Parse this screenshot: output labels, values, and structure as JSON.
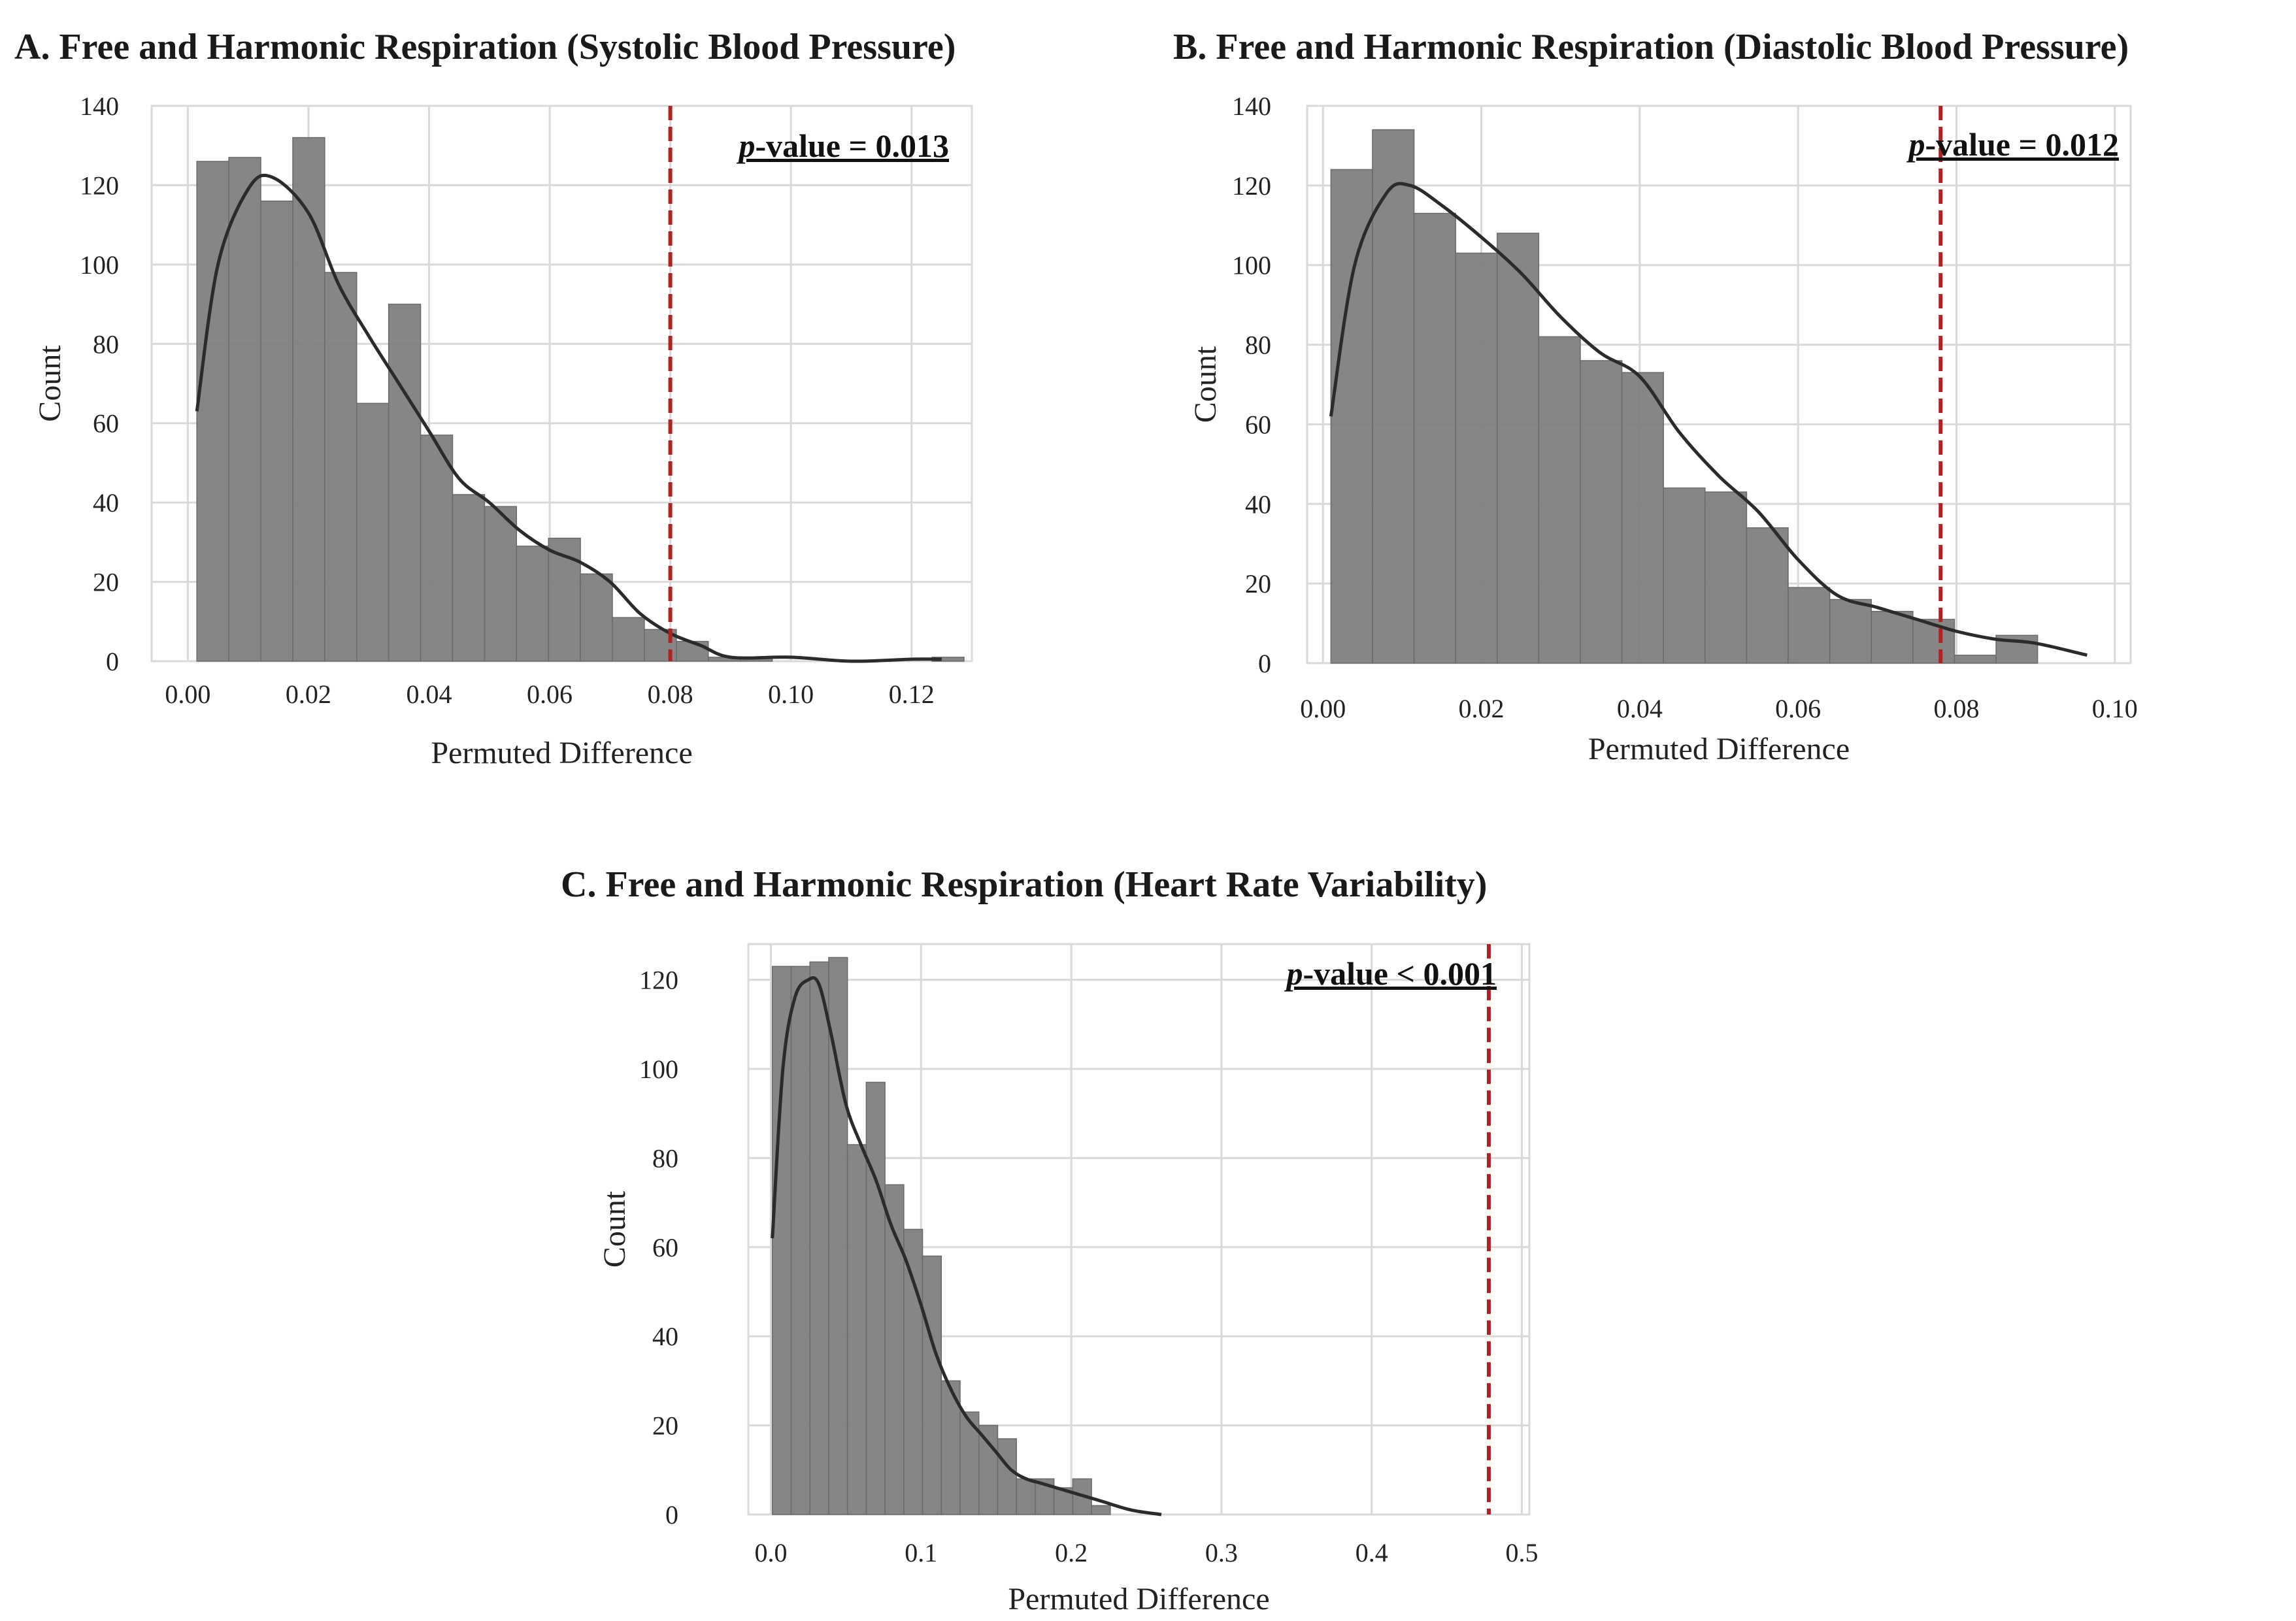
{
  "colors": {
    "bar": "#7f7f7f",
    "bar_edge": "#6a6a6a",
    "kde": "#2b2b2b",
    "grid": "#d9d9d9",
    "threshold": "#b22222"
  },
  "chart_data": [
    {
      "id": "A",
      "type": "bar",
      "title": "A. Free and Harmonic Respiration (Systolic Blood Pressure)",
      "xlabel": "Permuted Difference",
      "ylabel": "Count",
      "xlim": [
        -0.006,
        0.13
      ],
      "ylim": [
        0,
        140
      ],
      "xticks": [
        0.0,
        0.02,
        0.04,
        0.06,
        0.08,
        0.1,
        0.12
      ],
      "xtick_labels": [
        "0.00",
        "0.02",
        "0.04",
        "0.06",
        "0.08",
        "0.10",
        "0.12"
      ],
      "yticks": [
        0,
        20,
        40,
        60,
        80,
        100,
        120,
        140
      ],
      "bin_start": 0.0015,
      "bin_width": 0.0053,
      "values": [
        126,
        127,
        116,
        132,
        98,
        65,
        90,
        57,
        42,
        39,
        29,
        31,
        22,
        11,
        8,
        5,
        1,
        1,
        0,
        0,
        0,
        0,
        0,
        1
      ],
      "kde_x": [
        0.0015,
        0.005,
        0.01,
        0.014,
        0.02,
        0.025,
        0.03,
        0.035,
        0.04,
        0.045,
        0.05,
        0.055,
        0.06,
        0.065,
        0.07,
        0.075,
        0.08,
        0.085,
        0.09,
        0.1,
        0.11,
        0.12,
        0.125
      ],
      "kde_y": [
        63,
        100,
        119,
        122,
        113,
        95,
        82,
        70,
        58,
        46,
        40,
        33,
        28,
        25,
        20,
        12,
        7,
        4,
        1,
        1,
        0,
        0.5,
        0.5
      ],
      "threshold": 0.08,
      "pvalue": {
        "prefix": "p",
        "rest": "-value = 0.013"
      }
    },
    {
      "id": "B",
      "type": "bar",
      "title": "B. Free and Harmonic Respiration (Diastolic Blood Pressure)",
      "xlabel": "Permuted Difference",
      "ylabel": "Count",
      "xlim": [
        -0.002,
        0.102
      ],
      "ylim": [
        0,
        140
      ],
      "xticks": [
        0.0,
        0.02,
        0.04,
        0.06,
        0.08,
        0.1
      ],
      "xtick_labels": [
        "0.00",
        "0.02",
        "0.04",
        "0.06",
        "0.08",
        "0.10"
      ],
      "yticks": [
        0,
        20,
        40,
        60,
        80,
        100,
        120,
        140
      ],
      "bin_start": 0.001,
      "bin_width": 0.00525,
      "values": [
        124,
        134,
        113,
        103,
        108,
        82,
        76,
        73,
        44,
        43,
        34,
        19,
        16,
        13,
        11,
        2,
        7,
        0
      ],
      "kde_x": [
        0.001,
        0.004,
        0.008,
        0.011,
        0.015,
        0.02,
        0.025,
        0.03,
        0.035,
        0.04,
        0.045,
        0.05,
        0.055,
        0.06,
        0.065,
        0.07,
        0.075,
        0.08,
        0.085,
        0.09,
        0.0965
      ],
      "kde_y": [
        62,
        100,
        118,
        120,
        115,
        107,
        98,
        87,
        78,
        72,
        58,
        47,
        38,
        26,
        17,
        14,
        11,
        8,
        6,
        5,
        2
      ],
      "threshold": 0.078,
      "pvalue": {
        "prefix": "p",
        "rest": "-value = 0.012"
      }
    },
    {
      "id": "C",
      "type": "bar",
      "title": "C. Free and Harmonic Respiration (Heart Rate Variability)",
      "xlabel": "Permuted Difference",
      "ylabel": "Count",
      "xlim": [
        -0.015,
        0.505
      ],
      "ylim": [
        0,
        128
      ],
      "xticks": [
        0.0,
        0.1,
        0.2,
        0.3,
        0.4,
        0.5
      ],
      "xtick_labels": [
        "0.0",
        "0.1",
        "0.2",
        "0.3",
        "0.4",
        "0.5"
      ],
      "yticks": [
        0,
        20,
        40,
        60,
        80,
        100,
        120
      ],
      "bin_start": 0.001,
      "bin_width": 0.0125,
      "values": [
        123,
        123,
        124,
        125,
        83,
        97,
        74,
        64,
        58,
        30,
        23,
        20,
        17,
        8,
        8,
        6,
        8,
        2
      ],
      "kde_x": [
        0.001,
        0.008,
        0.016,
        0.025,
        0.032,
        0.04,
        0.05,
        0.06,
        0.07,
        0.08,
        0.09,
        0.1,
        0.11,
        0.12,
        0.13,
        0.14,
        0.15,
        0.16,
        0.17,
        0.18,
        0.2,
        0.22,
        0.24,
        0.26
      ],
      "kde_y": [
        62,
        100,
        116,
        120,
        119,
        108,
        92,
        83,
        75,
        65,
        57,
        47,
        36,
        28,
        22,
        18,
        14,
        10,
        8,
        7,
        5,
        3,
        1,
        0
      ],
      "threshold": 0.478,
      "pvalue": {
        "prefix": "p",
        "rest": "-value < 0.001"
      }
    }
  ]
}
